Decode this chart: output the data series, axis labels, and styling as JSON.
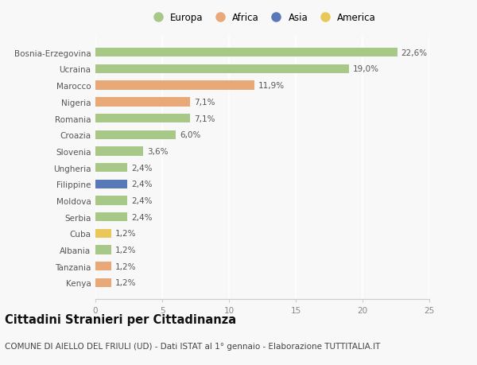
{
  "categories": [
    "Kenya",
    "Tanzania",
    "Albania",
    "Cuba",
    "Serbia",
    "Moldova",
    "Filippine",
    "Ungheria",
    "Slovenia",
    "Croazia",
    "Romania",
    "Nigeria",
    "Marocco",
    "Ucraina",
    "Bosnia-Erzegovina"
  ],
  "values": [
    1.2,
    1.2,
    1.2,
    1.2,
    2.4,
    2.4,
    2.4,
    2.4,
    3.6,
    6.0,
    7.1,
    7.1,
    11.9,
    19.0,
    22.6
  ],
  "labels": [
    "1,2%",
    "1,2%",
    "1,2%",
    "1,2%",
    "2,4%",
    "2,4%",
    "2,4%",
    "2,4%",
    "3,6%",
    "6,0%",
    "7,1%",
    "7,1%",
    "11,9%",
    "19,0%",
    "22,6%"
  ],
  "colors": [
    "#e8a878",
    "#e8a878",
    "#a8c888",
    "#e8c858",
    "#a8c888",
    "#a8c888",
    "#5878b8",
    "#a8c888",
    "#a8c888",
    "#a8c888",
    "#a8c888",
    "#e8a878",
    "#e8a878",
    "#a8c888",
    "#a8c888"
  ],
  "legend": [
    {
      "label": "Europa",
      "color": "#a8c888"
    },
    {
      "label": "Africa",
      "color": "#e8a878"
    },
    {
      "label": "Asia",
      "color": "#5878b8"
    },
    {
      "label": "America",
      "color": "#e8c858"
    }
  ],
  "xlim": [
    0,
    25
  ],
  "xticks": [
    0,
    5,
    10,
    15,
    20,
    25
  ],
  "title": "Cittadini Stranieri per Cittadinanza",
  "subtitle": "COMUNE DI AIELLO DEL FRIULI (UD) - Dati ISTAT al 1° gennaio - Elaborazione TUTTITALIA.IT",
  "bg_color": "#f8f8f8",
  "bar_height": 0.55,
  "title_fontsize": 10.5,
  "subtitle_fontsize": 7.5,
  "label_fontsize": 7.5,
  "tick_fontsize": 7.5,
  "legend_fontsize": 8.5
}
